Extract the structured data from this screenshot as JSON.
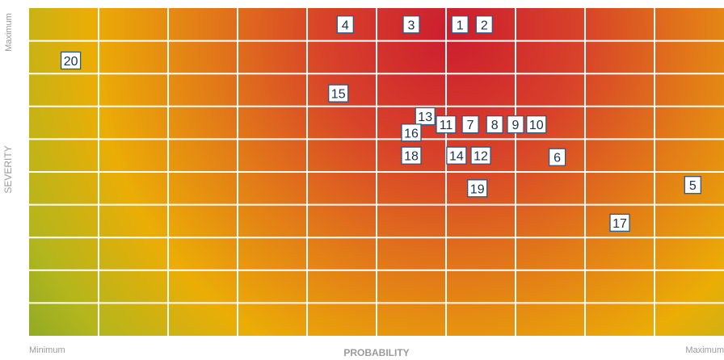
{
  "chart_data": {
    "type": "scatter",
    "title": "",
    "xlabel": "PROBABILITY",
    "ylabel": "SEVERITY",
    "x_min_label": "Minimum",
    "x_max_label": "Maximum",
    "y_min_label": "",
    "y_max_label": "Maximum",
    "grid": true,
    "grid_columns": 10,
    "grid_rows": 10,
    "xlim": [
      0,
      10
    ],
    "ylim": [
      0,
      10
    ],
    "colors": {
      "low": "#7aa329",
      "mid": "#e8b400",
      "high": "#e07a10",
      "critical": "#c8222c",
      "grid_line": "#ffffff",
      "marker_border": "#2b5a86",
      "marker_text": "#16324f"
    },
    "points": [
      {
        "label": "20",
        "x": 0.6,
        "y": 8.4
      },
      {
        "label": "4",
        "x": 4.55,
        "y": 9.5
      },
      {
        "label": "3",
        "x": 5.5,
        "y": 9.5
      },
      {
        "label": "1",
        "x": 6.2,
        "y": 9.5
      },
      {
        "label": "2",
        "x": 6.55,
        "y": 9.5
      },
      {
        "label": "15",
        "x": 4.45,
        "y": 7.4
      },
      {
        "label": "13",
        "x": 5.7,
        "y": 6.7
      },
      {
        "label": "11",
        "x": 6.0,
        "y": 6.45
      },
      {
        "label": "7",
        "x": 6.35,
        "y": 6.45
      },
      {
        "label": "8",
        "x": 6.7,
        "y": 6.45
      },
      {
        "label": "9",
        "x": 7.0,
        "y": 6.45
      },
      {
        "label": "10",
        "x": 7.3,
        "y": 6.45
      },
      {
        "label": "16",
        "x": 5.5,
        "y": 6.2
      },
      {
        "label": "18",
        "x": 5.5,
        "y": 5.5
      },
      {
        "label": "14",
        "x": 6.15,
        "y": 5.5
      },
      {
        "label": "12",
        "x": 6.5,
        "y": 5.5
      },
      {
        "label": "6",
        "x": 7.6,
        "y": 5.45
      },
      {
        "label": "19",
        "x": 6.45,
        "y": 4.5
      },
      {
        "label": "5",
        "x": 9.55,
        "y": 4.6
      },
      {
        "label": "17",
        "x": 8.5,
        "y": 3.45
      }
    ]
  }
}
